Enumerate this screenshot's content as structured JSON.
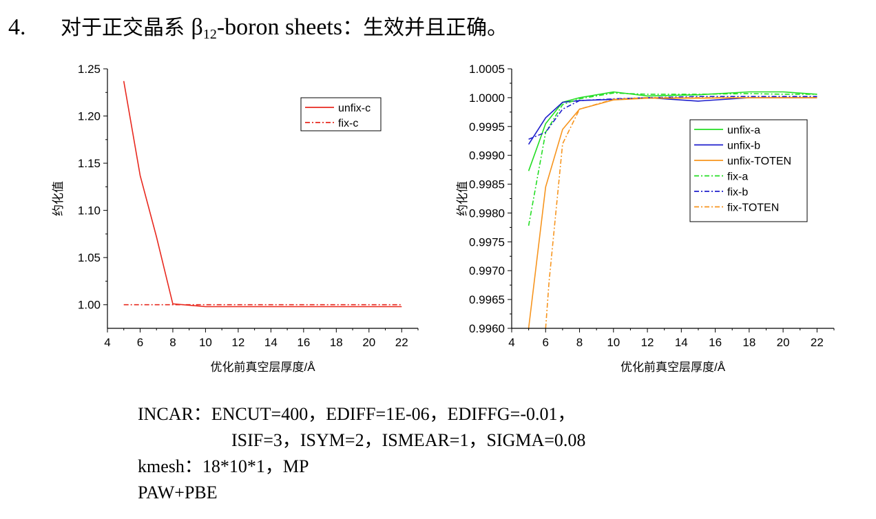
{
  "heading": {
    "number": "4.",
    "prefix": "对于正交晶系 ",
    "beta": "β",
    "subscript": "12",
    "suffix_en": "-boron sheets",
    "suffix_cn": "：生效并且正确。"
  },
  "params": {
    "line1": "INCAR：ENCUT=400，EDIFF=1E-06，EDIFFG=-0.01，",
    "line2": "ISIF=3，ISYM=2，ISMEAR=1，SIGMA=0.08",
    "line3": "kmesh：18*10*1，MP",
    "line4": "PAW+PBE"
  },
  "chart_data": [
    {
      "type": "line",
      "title": "",
      "xlabel": "优化前真空层厚度/Å",
      "ylabel": "约化值",
      "xlim": [
        4,
        23
      ],
      "ylim": [
        0.975,
        1.25
      ],
      "xticks": [
        4,
        6,
        8,
        10,
        12,
        14,
        16,
        18,
        20,
        22
      ],
      "yticks": [
        1.0,
        1.05,
        1.1,
        1.15,
        1.2,
        1.25
      ],
      "ytick_labels": [
        "1.00",
        "1.05",
        "1.10",
        "1.15",
        "1.20",
        "1.25"
      ],
      "legend_position": "top-right",
      "series": [
        {
          "name": "unfix-c",
          "color": "#e8281e",
          "dash": "solid",
          "x": [
            5,
            6,
            7,
            8,
            10,
            12,
            14,
            16,
            18,
            20,
            22
          ],
          "y": [
            1.237,
            1.137,
            1.072,
            1.001,
            0.998,
            0.998,
            0.998,
            0.998,
            0.998,
            0.998,
            0.998
          ]
        },
        {
          "name": "fix-c",
          "color": "#e8281e",
          "dash": "dashdot",
          "x": [
            5,
            6,
            7,
            8,
            10,
            12,
            14,
            16,
            18,
            20,
            22
          ],
          "y": [
            1.0,
            1.0,
            1.0,
            1.0,
            1.0,
            1.0,
            1.0,
            1.0,
            1.0,
            1.0,
            1.0
          ]
        }
      ]
    },
    {
      "type": "line",
      "title": "",
      "xlabel": "优化前真空层厚度/Å",
      "ylabel": "约化值",
      "xlim": [
        4,
        23
      ],
      "ylim": [
        0.996,
        1.0005
      ],
      "xticks": [
        4,
        6,
        8,
        10,
        12,
        14,
        16,
        18,
        20,
        22
      ],
      "yticks": [
        0.996,
        0.9965,
        0.997,
        0.9975,
        0.998,
        0.9985,
        0.999,
        0.9995,
        1.0,
        1.0005
      ],
      "ytick_labels": [
        "0.9960",
        "0.9965",
        "0.9970",
        "0.9975",
        "0.9980",
        "0.9985",
        "0.9990",
        "0.9995",
        "1.0000",
        "1.0005"
      ],
      "legend_position": "right",
      "series": [
        {
          "name": "unfix-a",
          "color": "#22dd22",
          "dash": "solid",
          "x": [
            5,
            6,
            7,
            8,
            10,
            12,
            15,
            18,
            20,
            22
          ],
          "y": [
            0.99873,
            0.99955,
            0.99992,
            1.0,
            1.0001,
            1.00003,
            1.00005,
            1.0001,
            1.0001,
            1.00006
          ]
        },
        {
          "name": "unfix-b",
          "color": "#1e1ecc",
          "dash": "solid",
          "x": [
            5,
            6,
            7,
            8,
            10,
            12,
            15,
            18,
            20,
            22
          ],
          "y": [
            0.99919,
            0.99965,
            0.99992,
            0.99995,
            0.99997,
            1.0,
            0.99994,
            1.0,
            1.0,
            1.0
          ]
        },
        {
          "name": "unfix-TOTEN",
          "color": "#f7941d",
          "dash": "solid",
          "x": [
            5,
            6,
            7,
            8,
            10,
            12,
            15,
            18,
            20,
            22
          ],
          "y": [
            0.996,
            0.99845,
            0.99945,
            0.9998,
            0.99996,
            0.99999,
            0.99999,
            1.0,
            1.0,
            1.0
          ]
        },
        {
          "name": "fix-a",
          "color": "#22dd22",
          "dash": "dashdot",
          "x": [
            5,
            6,
            7,
            8,
            10,
            12,
            15,
            18,
            20,
            22
          ],
          "y": [
            0.99778,
            0.9994,
            0.99988,
            0.99998,
            1.00008,
            1.00006,
            1.00006,
            1.00007,
            1.00006,
            1.00006
          ]
        },
        {
          "name": "fix-b",
          "color": "#1e1ecc",
          "dash": "dashdot",
          "x": [
            5,
            6,
            7,
            8,
            10,
            12,
            15,
            18,
            20,
            22
          ],
          "y": [
            0.99928,
            0.9994,
            0.9998,
            0.99995,
            0.99998,
            1.0,
            1.00002,
            1.00002,
            1.00002,
            1.00002
          ]
        },
        {
          "name": "fix-TOTEN",
          "color": "#f7941d",
          "dash": "dashdot",
          "x": [
            6,
            6.2,
            7,
            8,
            10,
            12,
            15,
            18,
            20,
            22
          ],
          "y": [
            0.996,
            0.9968,
            0.9992,
            0.9998,
            0.99997,
            1.0,
            1.0,
            1.0,
            1.0,
            1.0
          ]
        }
      ]
    }
  ]
}
